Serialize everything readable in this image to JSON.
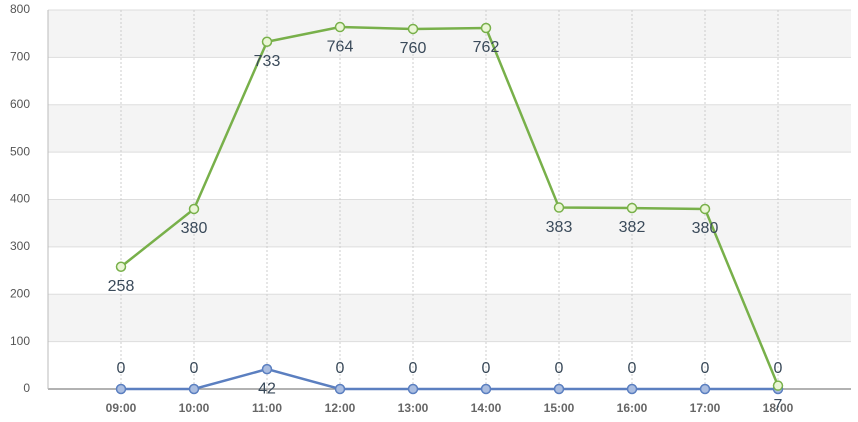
{
  "chart_data": {
    "type": "line",
    "categories": [
      "09:00",
      "10:00",
      "11:00",
      "12:00",
      "13:00",
      "14:00",
      "15:00",
      "16:00",
      "17:00",
      "18:00"
    ],
    "series": [
      {
        "name": null,
        "color": "#78b04a",
        "values": [
          258,
          380,
          733,
          764,
          760,
          762,
          383,
          382,
          380,
          7
        ]
      },
      {
        "name": null,
        "color": "#5b7fc0",
        "values": [
          0,
          0,
          42,
          0,
          0,
          0,
          0,
          0,
          0,
          0
        ]
      }
    ],
    "ylim": [
      0,
      800
    ],
    "yticks": [
      0,
      100,
      200,
      300,
      400,
      500,
      600,
      700,
      800
    ],
    "grid": true
  }
}
